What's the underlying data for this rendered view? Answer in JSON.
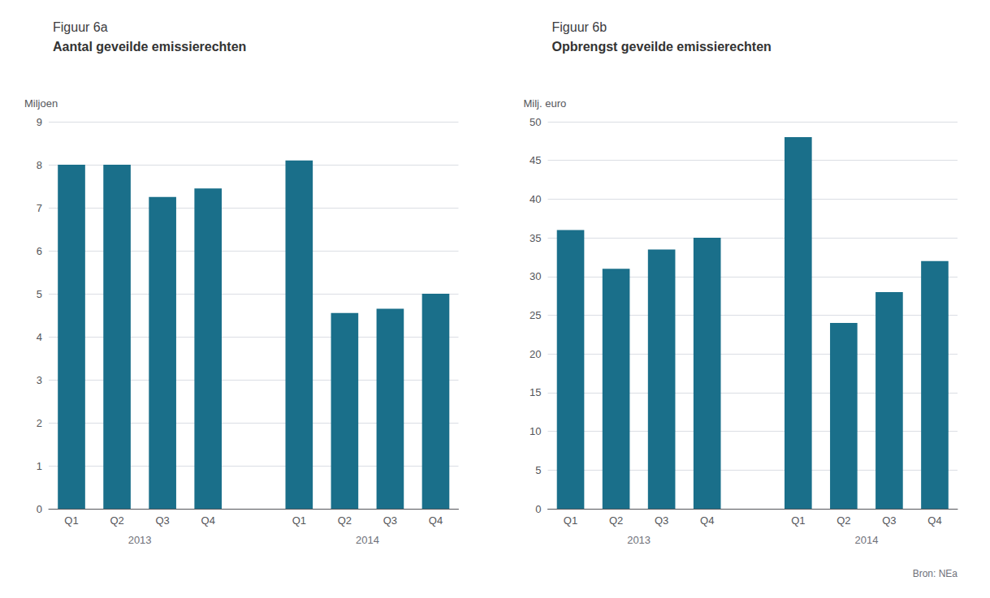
{
  "chart_data": [
    {
      "type": "bar",
      "title": "Figuur 6a",
      "subtitle": "Aantal geveilde emissierechten",
      "ylabel": "Miljoen",
      "categories": [
        "Q1",
        "Q2",
        "Q3",
        "Q4",
        "Q1",
        "Q2",
        "Q3",
        "Q4"
      ],
      "category_groups": [
        {
          "label": "2013",
          "size": 4
        },
        {
          "label": "2014",
          "size": 4
        }
      ],
      "values": [
        8.0,
        8.0,
        7.25,
        7.45,
        8.1,
        4.55,
        4.65,
        5.0
      ],
      "color": "#1a6f8a",
      "ylim": [
        0,
        9
      ],
      "yticks": [
        0,
        1,
        2,
        3,
        4,
        5,
        6,
        7,
        8,
        9
      ],
      "grid": true
    },
    {
      "type": "bar",
      "title": "Figuur 6b",
      "subtitle": "Opbrengst geveilde emissierechten",
      "ylabel": "Milj. euro",
      "categories": [
        "Q1",
        "Q2",
        "Q3",
        "Q4",
        "Q1",
        "Q2",
        "Q3",
        "Q4"
      ],
      "category_groups": [
        {
          "label": "2013",
          "size": 4
        },
        {
          "label": "2014",
          "size": 4
        }
      ],
      "values": [
        36.0,
        31.0,
        33.5,
        35.0,
        48.0,
        24.0,
        28.0,
        32.0
      ],
      "color": "#1a6f8a",
      "ylim": [
        0,
        50
      ],
      "yticks": [
        0,
        5,
        10,
        15,
        20,
        25,
        30,
        35,
        40,
        45,
        50
      ],
      "grid": true,
      "source": "Bron: NEa"
    }
  ]
}
